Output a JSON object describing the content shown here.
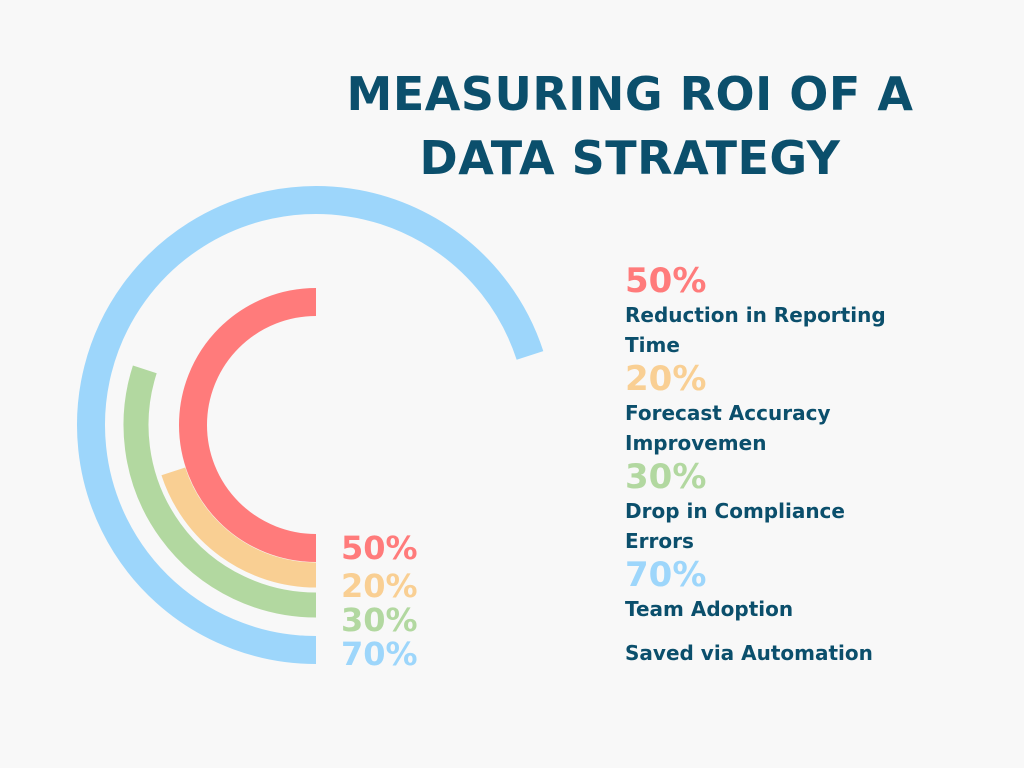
{
  "title_line1": "MEASURING ROI OF A",
  "title_line2": "DATA STRATEGY",
  "chart_data": {
    "type": "radial-bar",
    "max": 100,
    "series": [
      {
        "label_value": "50%",
        "value": 50,
        "color": "#ff7b7b"
      },
      {
        "label_value": "20%",
        "value": 20,
        "color": "#f9cf93"
      },
      {
        "label_value": "30%",
        "value": 30,
        "color": "#b2d8a0"
      },
      {
        "label_value": "70%",
        "value": 70,
        "color": "#9dd6fb"
      }
    ]
  },
  "legend": [
    {
      "pct": "50%",
      "label_line1": "Reduction in Reporting",
      "label_line2": "Time",
      "color": "#ff7b7b"
    },
    {
      "pct": "20%",
      "label_line1": "Forecast Accuracy",
      "label_line2": "Improvemen",
      "color": "#f9cf93"
    },
    {
      "pct": "30%",
      "label_line1": "Drop in Compliance",
      "label_line2": "Errors",
      "color": "#b2d8a0"
    },
    {
      "pct": "70%",
      "label_line1": "Team Adoption",
      "label_line2": "",
      "color": "#9dd6fb"
    }
  ],
  "footer_label": "Saved via Automation"
}
